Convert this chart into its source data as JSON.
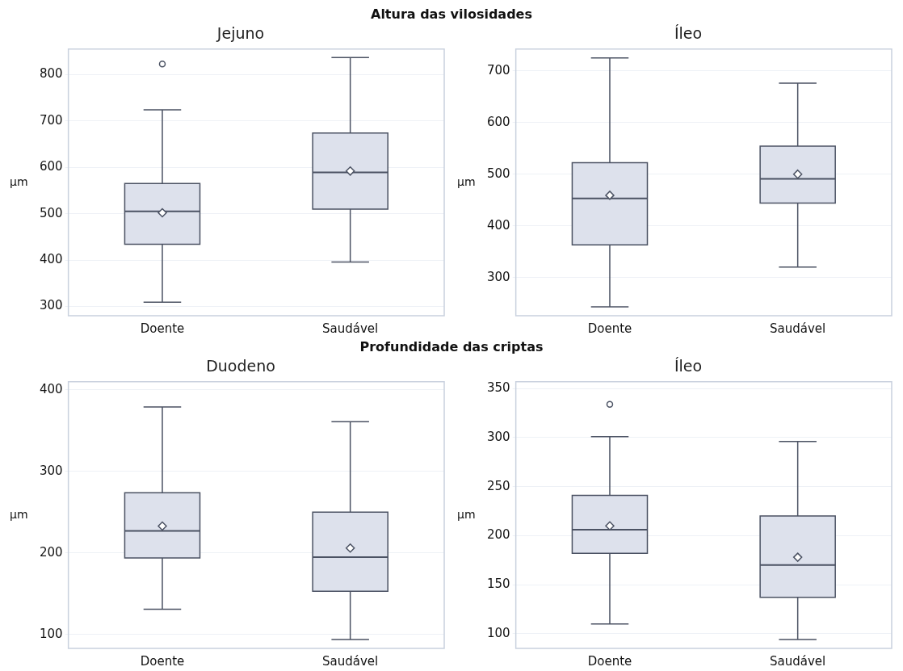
{
  "chart_data": [
    {
      "type": "box",
      "title": "Jejuno",
      "ylabel": "µm",
      "annotations": [
        "Altura das vilosidades"
      ],
      "categories": [
        "Doente",
        "Saudável"
      ],
      "color": "#dde1ec",
      "grid": "y",
      "ylim": [
        280,
        855
      ],
      "yticks": [
        300,
        400,
        500,
        600,
        700,
        800
      ],
      "boxes": [
        {
          "low": 309,
          "q1": 434,
          "median": 505,
          "q3": 565,
          "high": 724,
          "mean": 502,
          "outliers": [
            823
          ]
        },
        {
          "low": 396,
          "q1": 510,
          "median": 589,
          "q3": 674,
          "high": 837,
          "mean": 592
        }
      ]
    },
    {
      "type": "box",
      "title": "Íleo",
      "ylabel": "µm",
      "categories": [
        "Doente",
        "Saudável"
      ],
      "color": "#dde1ec",
      "grid": "y",
      "ylim": [
        226,
        742
      ],
      "yticks": [
        300,
        400,
        500,
        600,
        700
      ],
      "boxes": [
        {
          "low": 243,
          "q1": 363,
          "median": 453,
          "q3": 522,
          "high": 725,
          "mean": 459
        },
        {
          "low": 320,
          "q1": 444,
          "median": 491,
          "q3": 554,
          "high": 676,
          "mean": 500
        }
      ]
    },
    {
      "type": "box",
      "title": "Duodeno",
      "ylabel": "µm",
      "annotations": [
        "Profundidade das criptas"
      ],
      "categories": [
        "Doente",
        "Saudável"
      ],
      "color": "#dde1ec",
      "grid": "y",
      "ylim": [
        83,
        410
      ],
      "yticks": [
        100,
        200,
        300,
        400
      ],
      "boxes": [
        {
          "low": 131,
          "q1": 194,
          "median": 227,
          "q3": 274,
          "high": 379,
          "mean": 233
        },
        {
          "low": 94,
          "q1": 153,
          "median": 195,
          "q3": 250,
          "high": 361,
          "mean": 206
        }
      ]
    },
    {
      "type": "box",
      "title": "Íleo",
      "ylabel": "µm",
      "categories": [
        "Doente",
        "Saudável"
      ],
      "color": "#dde1ec",
      "grid": "y",
      "ylim": [
        85,
        357
      ],
      "yticks": [
        100,
        150,
        200,
        250,
        300,
        350
      ],
      "boxes": [
        {
          "low": 110,
          "q1": 182,
          "median": 206,
          "q3": 241,
          "high": 301,
          "mean": 210,
          "outliers": [
            334
          ]
        },
        {
          "low": 94,
          "q1": 137,
          "median": 170,
          "q3": 220,
          "high": 296,
          "mean": 178
        }
      ]
    }
  ]
}
